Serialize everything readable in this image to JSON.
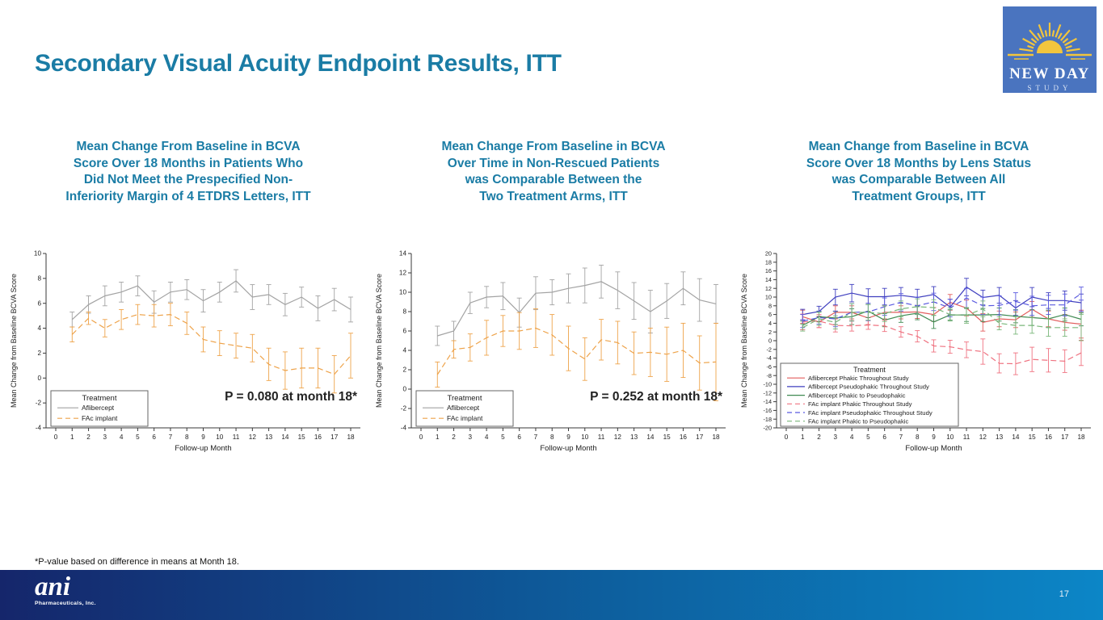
{
  "slide": {
    "title": "Secondary Visual Acuity Endpoint Results, ITT",
    "footnote": "*P-value based on difference in means at Month 18.",
    "page_number": "17",
    "accent_color": "#1A7CA5",
    "footer_gradient_left": "#15266B",
    "footer_gradient_right": "#0C86C7"
  },
  "logo": {
    "line1": "NEW DAY",
    "line2": "STUDY",
    "background": "#4a74bf",
    "sun_color": "#f2c53d"
  },
  "brand": {
    "name": "ani",
    "sub": "Pharmaceuticals, Inc."
  },
  "chart_data": [
    {
      "type": "line",
      "title": "Mean Change From Baseline in BCVA\nScore Over 18 Months in Patients Who\nDid Not Meet the Prespecified Non-\nInferiority Margin of 4 ETDRS Letters, ITT",
      "xlabel": "Follow-up Month",
      "ylabel": "Mean Change from Baseline BCVA Score",
      "x": [
        1,
        2,
        3,
        4,
        5,
        6,
        7,
        8,
        9,
        10,
        11,
        12,
        13,
        14,
        15,
        16,
        17,
        18
      ],
      "xticks": [
        0,
        1,
        2,
        3,
        4,
        5,
        6,
        7,
        8,
        9,
        10,
        11,
        12,
        13,
        14,
        15,
        16,
        17,
        18
      ],
      "ylim": [
        -4,
        10
      ],
      "ytick_step": 2,
      "grid": false,
      "legend_title": "Treatment",
      "legend_position": "bottom-left",
      "annotation": "P = 0.080 at month 18*",
      "series": [
        {
          "name": "Aflibercept",
          "color": "#a3a3a3",
          "dash": false,
          "values": [
            4.7,
            5.9,
            6.6,
            6.9,
            7.4,
            6.1,
            6.9,
            7.1,
            6.2,
            6.9,
            7.8,
            6.5,
            6.7,
            5.9,
            6.5,
            5.6,
            6.3,
            5.5
          ],
          "err": [
            0.6,
            0.7,
            0.8,
            0.8,
            0.8,
            0.9,
            0.8,
            0.8,
            0.9,
            0.8,
            0.9,
            1.0,
            0.8,
            0.9,
            0.8,
            1.0,
            0.9,
            1.0
          ]
        },
        {
          "name": "FAc implant",
          "color": "#eea34a",
          "dash": true,
          "values": [
            3.5,
            4.8,
            4.0,
            4.7,
            5.1,
            5.0,
            5.1,
            4.4,
            3.1,
            2.8,
            2.6,
            2.4,
            1.1,
            0.6,
            0.8,
            0.8,
            0.3,
            1.8
          ],
          "err": [
            0.6,
            0.5,
            0.7,
            0.8,
            0.8,
            0.9,
            0.9,
            0.9,
            1.0,
            1.0,
            1.0,
            1.1,
            1.3,
            1.5,
            1.6,
            1.6,
            1.5,
            1.8
          ]
        }
      ]
    },
    {
      "type": "line",
      "title": "Mean Change From Baseline in BCVA\nOver Time in Non-Rescued Patients\nwas Comparable Between the\nTwo Treatment Arms, ITT",
      "xlabel": "Follow-up Month",
      "ylabel": "Mean Change from Baseline BCVA Score",
      "x": [
        1,
        2,
        3,
        4,
        5,
        6,
        7,
        8,
        9,
        10,
        11,
        12,
        13,
        14,
        15,
        16,
        17,
        18
      ],
      "xticks": [
        0,
        1,
        2,
        3,
        4,
        5,
        6,
        7,
        8,
        9,
        10,
        11,
        12,
        13,
        14,
        15,
        16,
        17,
        18
      ],
      "ylim": [
        -4,
        14
      ],
      "ytick_step": 2,
      "grid": false,
      "legend_title": "Treatment",
      "legend_position": "bottom-left",
      "annotation": "P = 0.252 at month 18*",
      "series": [
        {
          "name": "Aflibercept",
          "color": "#a3a3a3",
          "dash": false,
          "values": [
            5.5,
            6.0,
            8.9,
            9.5,
            9.6,
            7.9,
            9.9,
            10.0,
            10.4,
            10.7,
            11.1,
            10.2,
            9.1,
            8.0,
            9.1,
            10.4,
            9.2,
            8.8
          ],
          "err": [
            1.0,
            1.0,
            1.1,
            1.1,
            1.4,
            1.5,
            1.7,
            1.3,
            1.5,
            1.8,
            1.7,
            1.9,
            1.9,
            2.2,
            1.8,
            1.7,
            2.2,
            2.0
          ]
        },
        {
          "name": "FAc implant",
          "color": "#eea34a",
          "dash": true,
          "values": [
            1.5,
            4.1,
            4.3,
            5.3,
            6.0,
            6.0,
            6.3,
            5.6,
            4.2,
            3.1,
            5.1,
            4.8,
            3.7,
            3.8,
            3.6,
            4.0,
            2.7,
            2.8
          ],
          "err": [
            1.3,
            0.9,
            1.4,
            1.8,
            1.6,
            1.9,
            2.0,
            2.1,
            2.3,
            2.2,
            2.1,
            2.2,
            2.2,
            2.5,
            2.8,
            2.8,
            2.8,
            4.0
          ]
        }
      ]
    },
    {
      "type": "line",
      "title": "Mean Change from Baseline in BCVA\nScore Over 18 Months by Lens Status\nwas Comparable Between All\nTreatment Groups, ITT",
      "xlabel": "Follow-up Month",
      "ylabel": "Mean Change from Baseline BCVA Score",
      "x": [
        1,
        2,
        3,
        4,
        5,
        6,
        7,
        8,
        9,
        10,
        11,
        12,
        13,
        14,
        15,
        16,
        17,
        18
      ],
      "xticks": [
        0,
        1,
        2,
        3,
        4,
        5,
        6,
        7,
        8,
        9,
        10,
        11,
        12,
        13,
        14,
        15,
        16,
        17,
        18
      ],
      "ylim": [
        -20,
        20
      ],
      "ytick_step": 2,
      "grid": false,
      "legend_title": "Treatment",
      "legend_position": "bottom-left",
      "annotation": "",
      "series": [
        {
          "name": "Aflibercept Phakic Throughout Study",
          "color": "#e35d5d",
          "dash": false,
          "values": [
            5.5,
            4.3,
            6.5,
            6.5,
            5.2,
            6.5,
            6.5,
            6.6,
            6.0,
            8.8,
            7.5,
            4.2,
            5.0,
            4.8,
            7.2,
            5.0,
            4.2,
            3.8
          ],
          "err": [
            1.5,
            1.3,
            1.5,
            1.5,
            1.5,
            1.5,
            1.5,
            1.5,
            1.6,
            1.8,
            1.8,
            2.0,
            1.8,
            1.8,
            1.8,
            1.8,
            1.8,
            3.2
          ]
        },
        {
          "name": "Aflibercept Pseudophakic Throughout Study",
          "color": "#3f3fbf",
          "dash": false,
          "values": [
            6.0,
            6.7,
            10.0,
            10.9,
            10.1,
            10.1,
            10.4,
            9.9,
            10.6,
            7.7,
            12.3,
            9.9,
            10.4,
            7.5,
            10.0,
            9.2,
            9.2,
            8.7
          ],
          "err": [
            1.2,
            1.2,
            1.8,
            2.0,
            1.8,
            1.9,
            1.8,
            1.9,
            1.8,
            1.8,
            2.0,
            1.7,
            1.8,
            1.7,
            2.2,
            1.8,
            2.2,
            2.0
          ]
        },
        {
          "name": "Aflibercept Phakic to Pseudophakic",
          "color": "#3f8a52",
          "dash": false,
          "values": [
            3.5,
            5.5,
            5.2,
            5.5,
            6.8,
            4.7,
            5.7,
            6.3,
            4.3,
            5.9,
            5.9,
            5.9,
            6.0,
            5.6,
            5.3,
            5.0,
            6.0,
            4.9
          ],
          "err": [
            1.0,
            1.2,
            1.5,
            1.8,
            1.5,
            1.5,
            1.5,
            1.5,
            1.5,
            1.2,
            1.5,
            1.5,
            1.5,
            1.5,
            1.8,
            2.0,
            1.5,
            1.5
          ]
        },
        {
          "name": "FAc implant Phakic Throughout Study",
          "color": "#ef7280",
          "dash": true,
          "values": [
            4.3,
            4.5,
            3.5,
            3.4,
            3.6,
            3.4,
            2.0,
            1.0,
            -1.2,
            -1.4,
            -2.1,
            -2.5,
            -5.2,
            -5.3,
            -4.3,
            -4.5,
            -4.7,
            -2.8
          ],
          "err": [
            1.8,
            1.5,
            1.5,
            1.2,
            1.0,
            1.3,
            1.2,
            1.3,
            1.4,
            1.5,
            1.8,
            2.9,
            2.2,
            2.5,
            2.8,
            2.7,
            2.6,
            2.9
          ]
        },
        {
          "name": "FAc implant Pseudophakic Throughout Study",
          "color": "#5a5ae0",
          "dash": true,
          "values": [
            4.5,
            5.3,
            5.0,
            6.5,
            6.6,
            7.8,
            8.8,
            8.0,
            8.9,
            7.5,
            9.8,
            8.0,
            8.1,
            9.0,
            8.0,
            8.2,
            8.2,
            10.8
          ],
          "err": [
            1.5,
            1.5,
            1.8,
            2.0,
            2.0,
            2.0,
            2.0,
            2.0,
            2.0,
            2.0,
            2.2,
            2.0,
            2.2,
            2.0,
            2.2,
            2.2,
            2.5,
            1.5
          ]
        },
        {
          "name": "FAc implant Phakic to Pseudophakic",
          "color": "#7ab77a",
          "dash": true,
          "values": [
            3.0,
            5.0,
            4.2,
            6.5,
            6.5,
            6.2,
            7.3,
            7.8,
            7.6,
            6.0,
            5.8,
            7.3,
            4.0,
            3.5,
            3.5,
            3.0,
            3.0,
            3.0
          ],
          "err": [
            0.8,
            1.5,
            1.5,
            2.0,
            1.8,
            1.8,
            1.8,
            1.8,
            1.8,
            1.5,
            1.8,
            1.8,
            1.5,
            2.0,
            1.8,
            2.0,
            2.0,
            3.0
          ]
        }
      ]
    }
  ]
}
